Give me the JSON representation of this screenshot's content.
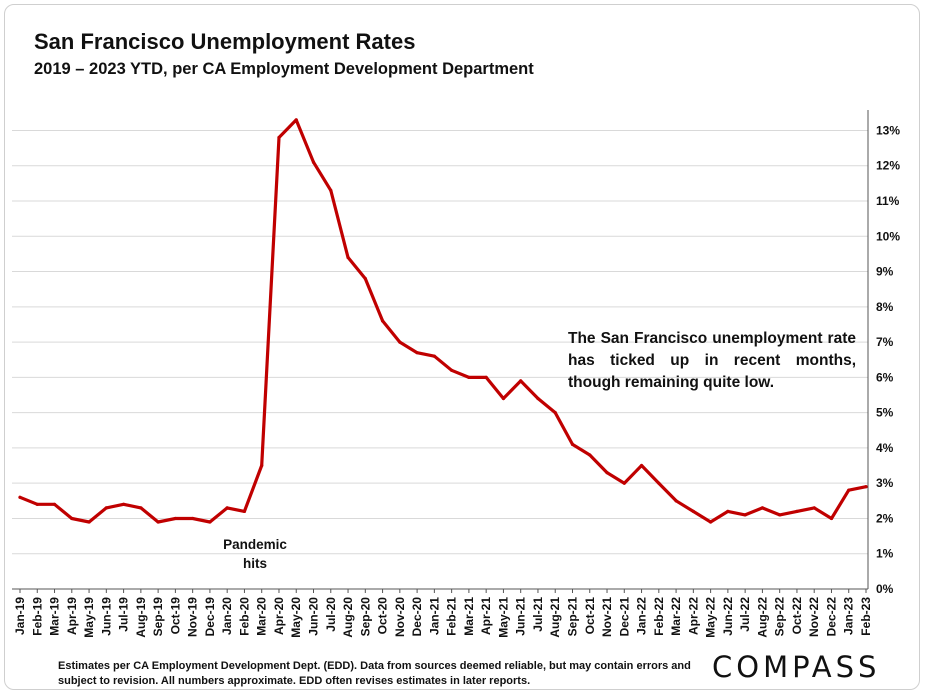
{
  "header": {
    "title": "San Francisco Unemployment Rates",
    "subtitle": "2019 – 2023 YTD, per CA Employment Development Department"
  },
  "annotations": {
    "pandemic": "Pandemic\nhits",
    "trend_note": "The San Francisco unemployment rate has ticked up in recent months, though remaining quite low."
  },
  "footer": {
    "note": "Estimates per CA Employment Development Dept. (EDD). Data from sources deemed reliable, but may contain errors and subject to revision. All numbers approximate.  EDD often revises estimates in later reports.",
    "logo": "COMPASS"
  },
  "colors": {
    "line": "#c00000",
    "grid": "#d9d9d9",
    "axis": "#555555"
  },
  "chart_data": {
    "type": "line",
    "title": "San Francisco Unemployment Rates",
    "subtitle": "2019 – 2023 YTD, per CA Employment Development Department",
    "xlabel": "",
    "ylabel": "",
    "y_axis_position": "right",
    "ylim": [
      0,
      13
    ],
    "yticks": [
      "0%",
      "1%",
      "2%",
      "3%",
      "4%",
      "5%",
      "6%",
      "7%",
      "8%",
      "9%",
      "10%",
      "11%",
      "12%",
      "13%"
    ],
    "grid": true,
    "legend": "none",
    "categories": [
      "Jan-19",
      "Feb-19",
      "Mar-19",
      "Apr-19",
      "May-19",
      "Jun-19",
      "Jul-19",
      "Aug-19",
      "Sep-19",
      "Oct-19",
      "Nov-19",
      "Dec-19",
      "Jan-20",
      "Feb-20",
      "Mar-20",
      "Apr-20",
      "May-20",
      "Jun-20",
      "Jul-20",
      "Aug-20",
      "Sep-20",
      "Oct-20",
      "Nov-20",
      "Dec-20",
      "Jan-21",
      "Feb-21",
      "Mar-21",
      "Apr-21",
      "May-21",
      "Jun-21",
      "Jul-21",
      "Aug-21",
      "Sep-21",
      "Oct-21",
      "Nov-21",
      "Dec-21",
      "Jan-22",
      "Feb-22",
      "Mar-22",
      "Apr-22",
      "May-22",
      "Jun-22",
      "Jul-22",
      "Aug-22",
      "Sep-22",
      "Oct-22",
      "Nov-22",
      "Dec-22",
      "Jan-23",
      "Feb-23"
    ],
    "series": [
      {
        "values": [
          2.6,
          2.4,
          2.4,
          2.0,
          1.9,
          2.3,
          2.4,
          2.3,
          1.9,
          2.0,
          2.0,
          1.9,
          2.3,
          2.2,
          3.5,
          12.8,
          13.3,
          12.1,
          11.3,
          9.4,
          8.8,
          7.6,
          7.0,
          6.7,
          6.6,
          6.2,
          6.0,
          6.0,
          5.4,
          5.9,
          5.4,
          5.0,
          4.1,
          3.8,
          3.3,
          3.0,
          3.5,
          3.0,
          2.5,
          2.2,
          1.9,
          2.2,
          2.1,
          2.3,
          2.1,
          2.2,
          2.3,
          2.0,
          2.8,
          2.9
        ]
      }
    ]
  }
}
